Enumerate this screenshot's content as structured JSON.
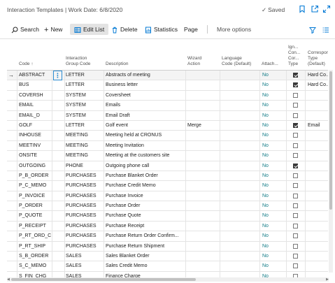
{
  "window": {
    "title": "Interaction Templates | Work Date: 6/8/2020",
    "saved": "Saved"
  },
  "actions": {
    "search": "Search",
    "new": "New",
    "edit_list": "Edit List",
    "delete": "Delete",
    "statistics": "Statistics",
    "page": "Page",
    "more": "More options"
  },
  "columns": {
    "code": "Code ↑",
    "group": [
      "Interaction",
      "Group Code"
    ],
    "description": "Description",
    "wizard": [
      "Wizard",
      "Action"
    ],
    "language": [
      "Language",
      "Code (Default)"
    ],
    "attach": "Attach...",
    "ignore": [
      "Ign...",
      "Con...",
      "Cor...",
      "Type"
    ],
    "corresp": [
      "Correspon...",
      "Type",
      "(Default)"
    ]
  },
  "rows": [
    {
      "code": "ABSTRACT",
      "group": "LETTER",
      "desc": "Abstracts of meeting",
      "wizard": "",
      "attach": "No",
      "ignore": true,
      "corr": "Hard Co..."
    },
    {
      "code": "BUS",
      "group": "LETTER",
      "desc": "Business letter",
      "wizard": "",
      "attach": "No",
      "ignore": true,
      "corr": "Hard Co..."
    },
    {
      "code": "COVERSH",
      "group": "SYSTEM",
      "desc": "Coversheet",
      "wizard": "",
      "attach": "No",
      "ignore": false,
      "corr": ""
    },
    {
      "code": "EMAIL",
      "group": "SYSTEM",
      "desc": "Emails",
      "wizard": "",
      "attach": "No",
      "ignore": false,
      "corr": ""
    },
    {
      "code": "EMAIL_D",
      "group": "SYSTEM",
      "desc": "Email Draft",
      "wizard": "",
      "attach": "No",
      "ignore": false,
      "corr": ""
    },
    {
      "code": "GOLF",
      "group": "LETTER",
      "desc": "Golf event",
      "wizard": "Merge",
      "attach": "No",
      "ignore": true,
      "corr": "Email"
    },
    {
      "code": "INHOUSE",
      "group": "MEETING",
      "desc": "Meeting held at CRONUS",
      "wizard": "",
      "attach": "No",
      "ignore": false,
      "corr": ""
    },
    {
      "code": "MEETINV",
      "group": "MEETING",
      "desc": "Meeting Invitation",
      "wizard": "",
      "attach": "No",
      "ignore": false,
      "corr": ""
    },
    {
      "code": "ONSITE",
      "group": "MEETING",
      "desc": "Meeting at the customers site",
      "wizard": "",
      "attach": "No",
      "ignore": false,
      "corr": ""
    },
    {
      "code": "OUTGOING",
      "group": "PHONE",
      "desc": "Outgoing phone call",
      "wizard": "",
      "attach": "No",
      "ignore": true,
      "corr": ""
    },
    {
      "code": "P_B_ORDER",
      "group": "PURCHASES",
      "desc": "Purchase Blanket Order",
      "wizard": "",
      "attach": "No",
      "ignore": false,
      "corr": ""
    },
    {
      "code": "P_C_MEMO",
      "group": "PURCHASES",
      "desc": "Purchase Credit Memo",
      "wizard": "",
      "attach": "No",
      "ignore": false,
      "corr": ""
    },
    {
      "code": "P_INVOICE",
      "group": "PURCHASES",
      "desc": "Purchase Invoice",
      "wizard": "",
      "attach": "No",
      "ignore": false,
      "corr": ""
    },
    {
      "code": "P_ORDER",
      "group": "PURCHASES",
      "desc": "Purchase Order",
      "wizard": "",
      "attach": "No",
      "ignore": false,
      "corr": ""
    },
    {
      "code": "P_QUOTE",
      "group": "PURCHASES",
      "desc": "Purchase Quote",
      "wizard": "",
      "attach": "No",
      "ignore": false,
      "corr": ""
    },
    {
      "code": "P_RECEIPT",
      "group": "PURCHASES",
      "desc": "Purchase Receipt",
      "wizard": "",
      "attach": "No",
      "ignore": false,
      "corr": ""
    },
    {
      "code": "P_RT_ORD_C",
      "group": "PURCHASES",
      "desc": "Purchase Return Order Confirm...",
      "wizard": "",
      "attach": "No",
      "ignore": false,
      "corr": ""
    },
    {
      "code": "P_RT_SHIP",
      "group": "PURCHASES",
      "desc": "Purchase Return Shipment",
      "wizard": "",
      "attach": "No",
      "ignore": false,
      "corr": ""
    },
    {
      "code": "S_B_ORDER",
      "group": "SALES",
      "desc": "Sales Blanket Order",
      "wizard": "",
      "attach": "No",
      "ignore": false,
      "corr": ""
    },
    {
      "code": "S_C_MEMO",
      "group": "SALES",
      "desc": "Sales Credit Memo",
      "wizard": "",
      "attach": "No",
      "ignore": false,
      "corr": ""
    },
    {
      "code": "S_FIN_CHG",
      "group": "SALES",
      "desc": "Finance Charge",
      "wizard": "",
      "attach": "No",
      "ignore": false,
      "corr": ""
    }
  ],
  "colors": {
    "accent": "#0078d4",
    "link": "#0f7b86"
  }
}
